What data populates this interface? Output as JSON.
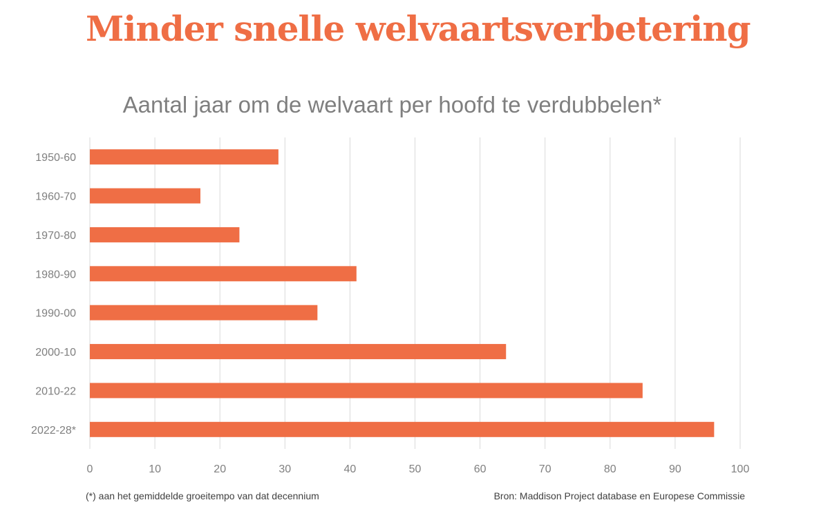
{
  "headline": "Minder snelle welvaartsverbetering",
  "footnote": "(*) aan het gemiddelde groeitempo van dat decennium",
  "source": "Bron: Maddison Project database en Europese Commissie",
  "colors": {
    "bar": "#ef6e45",
    "grid": "#d9d9d9",
    "text": "#7f7f7f",
    "headline": "#ef6e45"
  },
  "chart_data": {
    "type": "bar",
    "orientation": "horizontal",
    "title": "Aantal jaar om de welvaart per hoofd te verdubbelen*",
    "categories": [
      "1950-60",
      "1960-70",
      "1970-80",
      "1980-90",
      "1990-00",
      "2000-10",
      "2010-22",
      "2022-28*"
    ],
    "values": [
      29,
      17,
      23,
      41,
      35,
      64,
      85,
      96
    ],
    "xlim": [
      0,
      100
    ],
    "xticks": [
      0,
      10,
      20,
      30,
      40,
      50,
      60,
      70,
      80,
      90,
      100
    ],
    "xlabel": "",
    "ylabel": "",
    "grid": true,
    "legend": "none"
  }
}
